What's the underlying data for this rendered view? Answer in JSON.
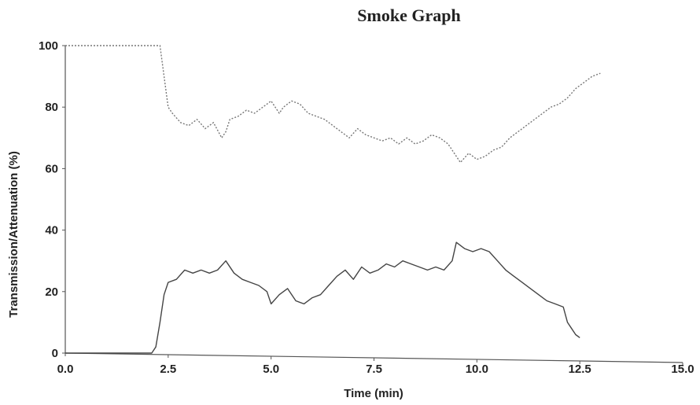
{
  "chart_data": {
    "type": "line",
    "title": "Smoke Graph",
    "xlabel": "Time (min)",
    "ylabel": "Transmission/Attenuation (%)",
    "xlim": [
      0,
      15
    ],
    "ylim": [
      0,
      100
    ],
    "x_ticks": [
      0.0,
      2.5,
      5.0,
      7.5,
      10.0,
      12.5,
      15.0
    ],
    "x_tick_labels": [
      "0.0",
      "2.5",
      "5.0",
      "7.5",
      "10.0",
      "12.5",
      "15.0"
    ],
    "y_ticks": [
      0,
      20,
      40,
      60,
      80,
      100
    ],
    "y_tick_labels": [
      "0",
      "20",
      "40",
      "60",
      "80",
      "100"
    ],
    "grid": false,
    "legend": "none",
    "series": [
      {
        "style": "dotted",
        "color": "#777777",
        "x": [
          0.0,
          2.3,
          2.5,
          2.6,
          2.8,
          3.0,
          3.2,
          3.4,
          3.6,
          3.8,
          3.9,
          4.0,
          4.2,
          4.4,
          4.6,
          4.8,
          5.0,
          5.2,
          5.3,
          5.5,
          5.7,
          5.9,
          6.1,
          6.3,
          6.5,
          6.7,
          6.9,
          7.1,
          7.3,
          7.5,
          7.7,
          7.9,
          8.1,
          8.3,
          8.5,
          8.7,
          8.9,
          9.1,
          9.3,
          9.5,
          9.6,
          9.8,
          10.0,
          10.2,
          10.4,
          10.6,
          10.8,
          11.0,
          11.2,
          11.4,
          11.6,
          11.8,
          12.0,
          12.2,
          12.4,
          12.6,
          12.8,
          13.0
        ],
        "y": [
          100,
          100,
          80,
          78,
          75,
          74,
          76,
          73,
          75,
          70,
          72,
          76,
          77,
          79,
          78,
          80,
          82,
          78,
          80,
          82,
          81,
          78,
          77,
          76,
          74,
          72,
          70,
          73,
          71,
          70,
          69,
          70,
          68,
          70,
          68,
          69,
          71,
          70,
          68,
          64,
          62,
          65,
          63,
          64,
          66,
          67,
          70,
          72,
          74,
          76,
          78,
          80,
          81,
          83,
          86,
          88,
          90,
          91
        ]
      },
      {
        "style": "solid",
        "color": "#444444",
        "x": [
          0.0,
          2.1,
          2.2,
          2.3,
          2.4,
          2.5,
          2.7,
          2.9,
          3.1,
          3.3,
          3.5,
          3.7,
          3.9,
          4.1,
          4.3,
          4.5,
          4.7,
          4.9,
          5.0,
          5.2,
          5.4,
          5.6,
          5.8,
          6.0,
          6.2,
          6.4,
          6.6,
          6.8,
          7.0,
          7.2,
          7.4,
          7.6,
          7.8,
          8.0,
          8.2,
          8.4,
          8.6,
          8.8,
          9.0,
          9.2,
          9.4,
          9.5,
          9.7,
          9.9,
          10.1,
          10.3,
          10.5,
          10.7,
          10.9,
          11.1,
          11.3,
          11.5,
          11.7,
          11.9,
          12.1,
          12.2,
          12.3,
          12.4,
          12.5
        ],
        "y": [
          0,
          0,
          2,
          10,
          19,
          23,
          24,
          27,
          26,
          27,
          26,
          27,
          30,
          26,
          24,
          23,
          22,
          20,
          16,
          19,
          21,
          17,
          16,
          18,
          19,
          22,
          25,
          27,
          24,
          28,
          26,
          27,
          29,
          28,
          30,
          29,
          28,
          27,
          28,
          27,
          30,
          36,
          34,
          33,
          34,
          33,
          30,
          27,
          25,
          23,
          21,
          19,
          17,
          16,
          15,
          10,
          8,
          6,
          5
        ]
      }
    ]
  }
}
